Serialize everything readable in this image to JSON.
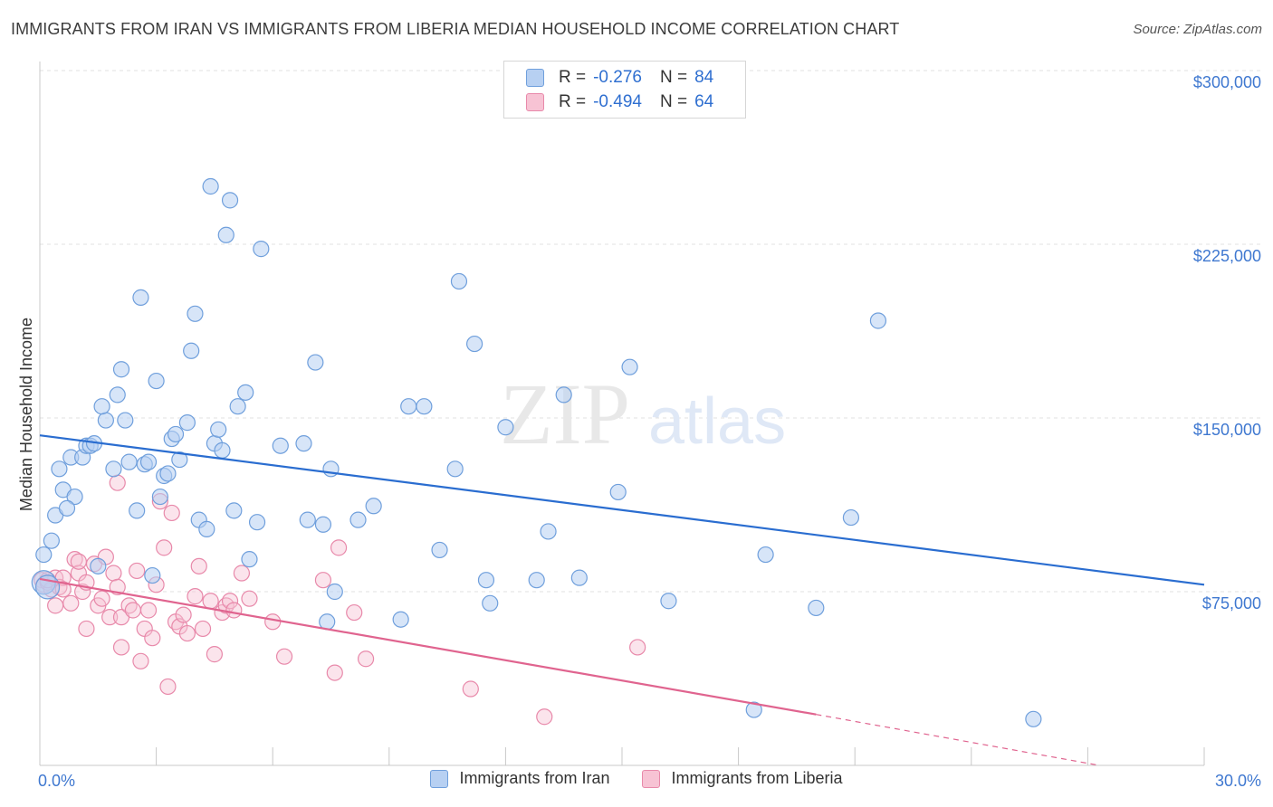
{
  "title": "IMMIGRANTS FROM IRAN VS IMMIGRANTS FROM LIBERIA MEDIAN HOUSEHOLD INCOME CORRELATION CHART",
  "source": "Source: ZipAtlas.com",
  "watermark": {
    "zip": "ZIP",
    "atlas": "atlas"
  },
  "legend_top": [
    {
      "r_label": "R =",
      "r_value": "-0.276",
      "n_label": "N =",
      "n_value": "84"
    },
    {
      "r_label": "R =",
      "r_value": "-0.494",
      "n_label": "N =",
      "n_value": "64"
    }
  ],
  "colors": {
    "iran_fill": "#b7d0f2",
    "iran_stroke": "#6f9fdc",
    "iran_line": "#2a6dd0",
    "liberia_fill": "#f7c3d4",
    "liberia_stroke": "#e889aa",
    "liberia_line": "#e0648f",
    "tick_label": "#3f78d0",
    "grid": "#e2e2e2"
  },
  "chart_data": {
    "type": "scatter",
    "title": "IMMIGRANTS FROM IRAN VS IMMIGRANTS FROM LIBERIA MEDIAN HOUSEHOLD INCOME CORRELATION CHART",
    "xlabel": "",
    "ylabel": "Median Household Income",
    "xlim": [
      0,
      30
    ],
    "ylim": [
      0,
      315000
    ],
    "x_tick_labels": [
      "0.0%",
      "30.0%"
    ],
    "y_ticks": [
      75000,
      150000,
      225000,
      300000
    ],
    "y_tick_labels": [
      "$75,000",
      "$150,000",
      "$225,000",
      "$300,000"
    ],
    "grid": true,
    "legend_position": "bottom",
    "series": [
      {
        "name": "Immigrants from Iran",
        "trend": {
          "x": [
            0,
            30
          ],
          "y": [
            142500,
            78000
          ]
        },
        "points": [
          [
            0.1,
            91000
          ],
          [
            0.3,
            97000
          ],
          [
            0.4,
            108000
          ],
          [
            0.5,
            128000
          ],
          [
            0.6,
            119000
          ],
          [
            0.9,
            116000
          ],
          [
            0.7,
            111000
          ],
          [
            0.8,
            133000
          ],
          [
            1.1,
            133000
          ],
          [
            1.2,
            138000
          ],
          [
            1.3,
            138000
          ],
          [
            1.4,
            139000
          ],
          [
            1.5,
            86000
          ],
          [
            1.7,
            149000
          ],
          [
            1.6,
            155000
          ],
          [
            1.9,
            128000
          ],
          [
            2.0,
            160000
          ],
          [
            2.1,
            171000
          ],
          [
            2.2,
            149000
          ],
          [
            2.3,
            131000
          ],
          [
            2.5,
            110000
          ],
          [
            2.6,
            202000
          ],
          [
            2.7,
            130000
          ],
          [
            2.8,
            131000
          ],
          [
            2.9,
            82000
          ],
          [
            3.0,
            166000
          ],
          [
            3.1,
            116000
          ],
          [
            3.2,
            125000
          ],
          [
            3.3,
            126000
          ],
          [
            3.4,
            141000
          ],
          [
            3.5,
            143000
          ],
          [
            3.6,
            132000
          ],
          [
            3.8,
            148000
          ],
          [
            3.9,
            179000
          ],
          [
            4.0,
            195000
          ],
          [
            4.1,
            106000
          ],
          [
            4.3,
            102000
          ],
          [
            4.4,
            250000
          ],
          [
            4.5,
            139000
          ],
          [
            4.6,
            145000
          ],
          [
            4.7,
            136000
          ],
          [
            4.8,
            229000
          ],
          [
            4.9,
            244000
          ],
          [
            5.0,
            110000
          ],
          [
            5.1,
            155000
          ],
          [
            5.3,
            161000
          ],
          [
            5.4,
            89000
          ],
          [
            5.6,
            105000
          ],
          [
            5.7,
            223000
          ],
          [
            6.2,
            138000
          ],
          [
            6.8,
            139000
          ],
          [
            6.9,
            106000
          ],
          [
            7.1,
            174000
          ],
          [
            7.3,
            104000
          ],
          [
            7.5,
            128000
          ],
          [
            7.4,
            62000
          ],
          [
            7.6,
            75000
          ],
          [
            8.2,
            106000
          ],
          [
            8.6,
            112000
          ],
          [
            9.3,
            63000
          ],
          [
            9.5,
            155000
          ],
          [
            9.9,
            155000
          ],
          [
            10.3,
            93000
          ],
          [
            10.7,
            128000
          ],
          [
            10.8,
            209000
          ],
          [
            11.2,
            182000
          ],
          [
            11.5,
            80000
          ],
          [
            11.6,
            70000
          ],
          [
            12.0,
            146000
          ],
          [
            12.8,
            80000
          ],
          [
            13.1,
            101000
          ],
          [
            13.5,
            160000
          ],
          [
            13.9,
            81000
          ],
          [
            14.9,
            118000
          ],
          [
            15.2,
            172000
          ],
          [
            16.2,
            71000
          ],
          [
            18.4,
            24000
          ],
          [
            18.7,
            91000
          ],
          [
            20.0,
            68000
          ],
          [
            20.9,
            107000
          ],
          [
            21.6,
            192000
          ],
          [
            25.6,
            20000
          ],
          [
            0.1,
            79000
          ],
          [
            0.2,
            77000
          ]
        ]
      },
      {
        "name": "Immigrants from Liberia",
        "trend": {
          "x": [
            0,
            20.0
          ],
          "y": [
            80500,
            22000
          ]
        },
        "trend_dashed": {
          "x": [
            20.0,
            27.3
          ],
          "y": [
            22000,
            0
          ]
        },
        "points": [
          [
            0.05,
            80000
          ],
          [
            0.1,
            78000
          ],
          [
            0.2,
            79000
          ],
          [
            0.3,
            76000
          ],
          [
            0.4,
            81000
          ],
          [
            0.4,
            69000
          ],
          [
            0.5,
            77000
          ],
          [
            0.6,
            81000
          ],
          [
            0.8,
            70000
          ],
          [
            0.9,
            89000
          ],
          [
            1.0,
            83000
          ],
          [
            1.0,
            88000
          ],
          [
            1.1,
            75000
          ],
          [
            1.2,
            79000
          ],
          [
            1.2,
            59000
          ],
          [
            1.4,
            87000
          ],
          [
            1.5,
            69000
          ],
          [
            1.6,
            72000
          ],
          [
            1.7,
            90000
          ],
          [
            1.8,
            64000
          ],
          [
            1.9,
            83000
          ],
          [
            2.0,
            77000
          ],
          [
            2.1,
            64000
          ],
          [
            2.1,
            51000
          ],
          [
            2.3,
            69000
          ],
          [
            2.4,
            67000
          ],
          [
            2.5,
            84000
          ],
          [
            2.6,
            45000
          ],
          [
            2.7,
            59000
          ],
          [
            2.8,
            67000
          ],
          [
            2.9,
            55000
          ],
          [
            3.0,
            78000
          ],
          [
            3.1,
            114000
          ],
          [
            3.2,
            94000
          ],
          [
            3.3,
            34000
          ],
          [
            3.4,
            109000
          ],
          [
            3.5,
            62000
          ],
          [
            3.6,
            60000
          ],
          [
            3.7,
            65000
          ],
          [
            3.8,
            57000
          ],
          [
            4.0,
            73000
          ],
          [
            4.1,
            86000
          ],
          [
            4.2,
            59000
          ],
          [
            4.4,
            71000
          ],
          [
            4.5,
            48000
          ],
          [
            4.7,
            66000
          ],
          [
            4.8,
            69000
          ],
          [
            4.9,
            71000
          ],
          [
            5.0,
            67000
          ],
          [
            5.2,
            83000
          ],
          [
            5.4,
            72000
          ],
          [
            6.0,
            62000
          ],
          [
            6.3,
            47000
          ],
          [
            7.3,
            80000
          ],
          [
            7.6,
            40000
          ],
          [
            7.7,
            94000
          ],
          [
            8.1,
            66000
          ],
          [
            8.4,
            46000
          ],
          [
            11.1,
            33000
          ],
          [
            13.0,
            21000
          ],
          [
            15.4,
            51000
          ],
          [
            2.0,
            122000
          ],
          [
            0.2,
            80000
          ],
          [
            0.6,
            76000
          ]
        ]
      }
    ]
  },
  "legend_bottom": [
    "Immigrants from Iran",
    "Immigrants from Liberia"
  ]
}
